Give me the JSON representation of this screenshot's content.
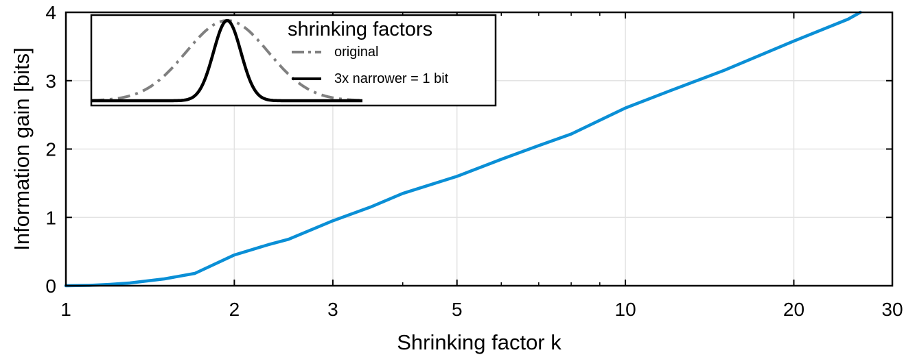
{
  "chart_data": {
    "type": "line",
    "title": "",
    "xlabel": "Shrinking factor k",
    "ylabel": "Information gain [bits]",
    "xscale": "log",
    "xlim": [
      1,
      30
    ],
    "ylim": [
      0,
      4
    ],
    "x_ticks": [
      1,
      2,
      3,
      5,
      10,
      20,
      30
    ],
    "x_tick_labels": [
      "1",
      "2",
      "3",
      "5",
      "10",
      "20",
      "30"
    ],
    "x_minor_ticks": [
      4,
      6,
      7,
      8,
      9
    ],
    "y_ticks": [
      0,
      1,
      2,
      3,
      4
    ],
    "y_tick_labels": [
      "0",
      "1",
      "2",
      "3",
      "4"
    ],
    "grid": true,
    "series": [
      {
        "color": "#0a8fd6",
        "x": [
          1,
          1.1,
          1.2,
          1.3,
          1.5,
          1.7,
          2,
          2.3,
          2.5,
          3,
          3.5,
          4,
          5,
          6,
          7,
          8,
          10,
          12,
          15,
          20,
          25,
          26.3
        ],
        "y": [
          0,
          0.005,
          0.02,
          0.04,
          0.1,
          0.18,
          0.45,
          0.6,
          0.68,
          0.95,
          1.15,
          1.35,
          1.6,
          1.85,
          2.05,
          2.22,
          2.6,
          2.85,
          3.15,
          3.58,
          3.9,
          4.0
        ]
      }
    ],
    "inset": {
      "legend_title": "shrinking factors",
      "entries": [
        {
          "label": "original",
          "color": "#808080",
          "style": "dash-dot"
        },
        {
          "label": "3x narrower = 1 bit",
          "color": "#000000",
          "style": "solid"
        }
      ]
    }
  }
}
